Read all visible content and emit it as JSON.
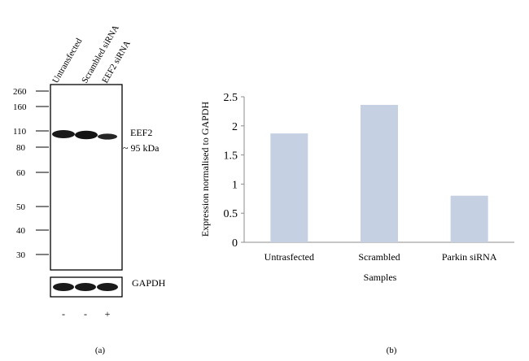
{
  "panel_a": {
    "lane_labels": [
      "Untransfected",
      "Scrambled siRNA",
      "EEF2 siRNA"
    ],
    "mw_markers": [
      "260",
      "160",
      "110",
      "80",
      "60",
      "50",
      "40",
      "30"
    ],
    "band_label": "EEF2",
    "band_size": "~ 95 kDa",
    "loading_control": "GAPDH",
    "treatment": [
      "-",
      "-",
      "+"
    ],
    "caption": "(a)"
  },
  "panel_b": {
    "caption": "(b)"
  },
  "chart_data": {
    "type": "bar",
    "categories": [
      "Untrasfected",
      "Scrambled",
      "Parkin siRNA"
    ],
    "values": [
      1.87,
      2.36,
      0.8
    ],
    "xlabel": "Samples",
    "ylabel": "Expression normalised to GAPDH",
    "ylim": [
      0,
      2.5
    ],
    "yticks": [
      "0",
      "0.5",
      "1",
      "1.5",
      "2",
      "2.5"
    ],
    "bar_color": "#c5d1e3",
    "grid": false
  }
}
